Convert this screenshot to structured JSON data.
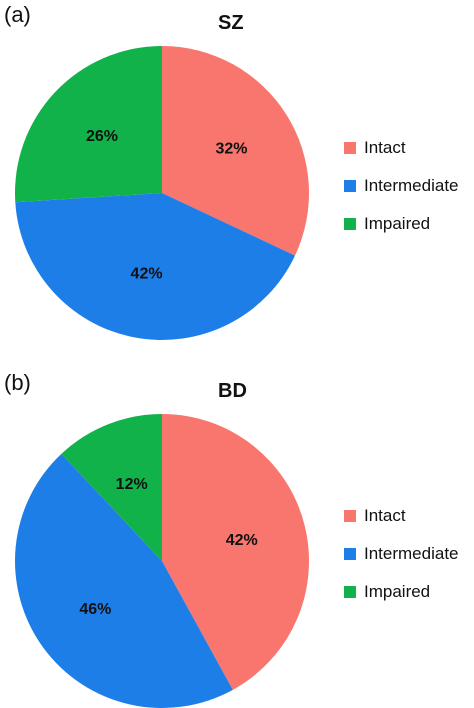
{
  "chart_data": [
    {
      "type": "pie",
      "panel_label": "(a)",
      "title": "SZ",
      "slices": [
        {
          "label": "Intact",
          "value": 32,
          "value_label": "32%",
          "color": "#F8766D"
        },
        {
          "label": "Intermediate",
          "value": 42,
          "value_label": "42%",
          "color": "#1E7EE8"
        },
        {
          "label": "Impaired",
          "value": 26,
          "value_label": "26%",
          "color": "#12B24A"
        }
      ],
      "legend_position": "right"
    },
    {
      "type": "pie",
      "panel_label": "(b)",
      "title": "BD",
      "slices": [
        {
          "label": "Intact",
          "value": 42,
          "value_label": "42%",
          "color": "#F8766D"
        },
        {
          "label": "Intermediate",
          "value": 46,
          "value_label": "46%",
          "color": "#1E7EE8"
        },
        {
          "label": "Impaired",
          "value": 12,
          "value_label": "12%",
          "color": "#12B24A"
        }
      ],
      "legend_position": "right"
    }
  ]
}
